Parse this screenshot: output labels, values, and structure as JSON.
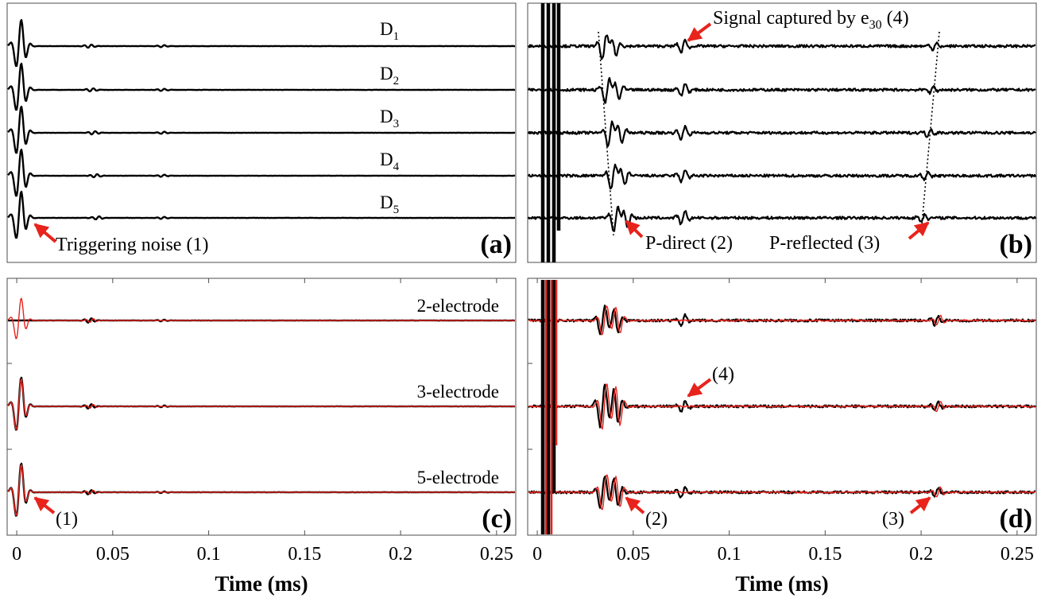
{
  "figure": {
    "xlabel": "Time (ms)",
    "x_ticks": [
      "0",
      "0.05",
      "0.1",
      "0.15",
      "0.2",
      "0.25"
    ],
    "x_tick_values": [
      0,
      0.05,
      0.1,
      0.15,
      0.2,
      0.25
    ],
    "colors": {
      "black": "#000000",
      "red": "#e8231c",
      "frame": "#4d4d4d"
    }
  },
  "chart_data": [
    {
      "type": "line",
      "panel_label": "(a)",
      "xlim": [
        -0.005,
        0.26
      ],
      "grid": false,
      "series": [
        {
          "name": "D1",
          "label_main": "D",
          "label_sub": "1"
        },
        {
          "name": "D2",
          "label_main": "D",
          "label_sub": "2"
        },
        {
          "name": "D3",
          "label_main": "D",
          "label_sub": "3"
        },
        {
          "name": "D4",
          "label_main": "D",
          "label_sub": "4"
        },
        {
          "name": "D5",
          "label_main": "D",
          "label_sub": "5"
        }
      ],
      "annotations": [
        {
          "text": "Triggering noise (1)",
          "x": 0.004
        }
      ]
    },
    {
      "type": "line",
      "panel_label": "(b)",
      "xlim": [
        -0.005,
        0.26
      ],
      "grid": false,
      "series": [
        {
          "name": "D1"
        },
        {
          "name": "D2"
        },
        {
          "name": "D3"
        },
        {
          "name": "D4"
        },
        {
          "name": "D5"
        }
      ],
      "annotations": [
        {
          "text_main": "Signal captured by e",
          "text_sub": "30",
          "text_after": " (4)",
          "x": 0.076
        },
        {
          "text": "P-direct (2)",
          "x": 0.042
        },
        {
          "text": "P-reflected (3)",
          "x": 0.206
        }
      ],
      "arrival_lines": [
        {
          "x_top": 0.029,
          "x_bottom": 0.036
        },
        {
          "x_top": 0.207,
          "x_bottom": 0.199
        }
      ]
    },
    {
      "type": "line",
      "panel_label": "(c)",
      "xlim": [
        -0.005,
        0.26
      ],
      "grid": false,
      "series": [
        {
          "name": "2-electrode"
        },
        {
          "name": "3-electrode"
        },
        {
          "name": "5-electrode"
        }
      ],
      "annotations": [
        {
          "text": "(1)",
          "x": 0.004
        }
      ]
    },
    {
      "type": "line",
      "panel_label": "(d)",
      "xlim": [
        -0.005,
        0.26
      ],
      "grid": false,
      "series": [
        {
          "name": "2-electrode"
        },
        {
          "name": "3-electrode"
        },
        {
          "name": "5-electrode"
        }
      ],
      "annotations": [
        {
          "text": "(4)",
          "x": 0.076
        },
        {
          "text": "(2)",
          "x": 0.042
        },
        {
          "text": "(3)",
          "x": 0.206
        }
      ]
    }
  ]
}
